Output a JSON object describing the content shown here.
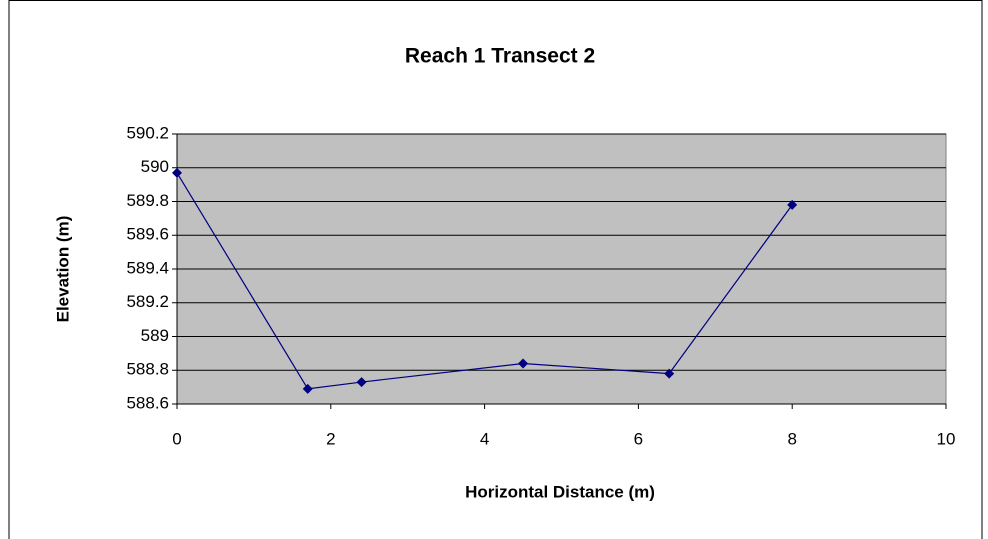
{
  "chart_data": {
    "type": "line",
    "title": "Reach 1 Transect 2",
    "x_label": "Horizontal Distance (m)",
    "y_label": "Elevation (m)",
    "x": [
      0,
      1.7,
      2.4,
      4.5,
      6.4,
      8
    ],
    "series": [
      {
        "name": "Transect 2",
        "color": "#000080",
        "values": [
          589.97,
          588.69,
          588.73,
          588.84,
          588.78,
          589.78
        ]
      }
    ],
    "xlim": [
      0,
      10
    ],
    "xticks": [
      0,
      2,
      4,
      6,
      8,
      10
    ],
    "ylim": [
      588.6,
      590.2
    ],
    "yticks": [
      588.6,
      588.8,
      589,
      589.2,
      589.4,
      589.6,
      589.8,
      590,
      590.2
    ],
    "grid": true
  }
}
